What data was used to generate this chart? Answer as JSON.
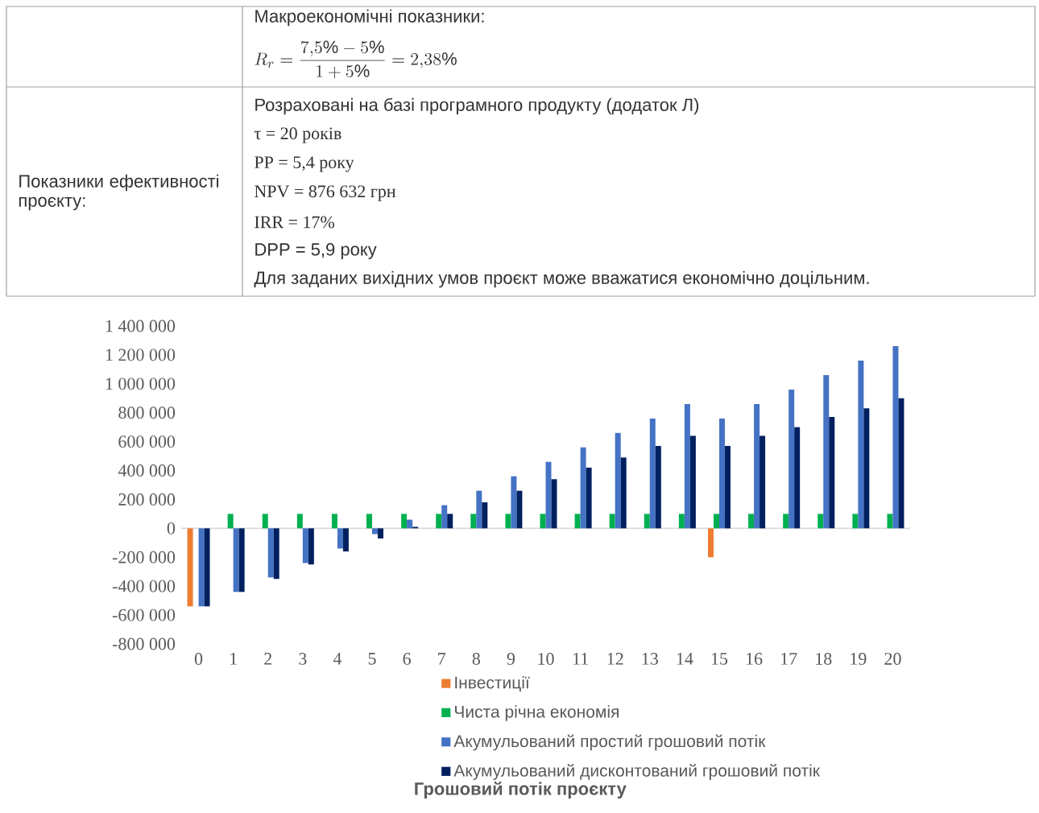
{
  "chart_data": {
    "type": "bar",
    "title": "Грошовий потік проєкту",
    "categories": [
      "0",
      "1",
      "2",
      "3",
      "4",
      "5",
      "6",
      "7",
      "8",
      "9",
      "10",
      "11",
      "12",
      "13",
      "14",
      "15",
      "16",
      "17",
      "18",
      "19",
      "20"
    ],
    "series": [
      {
        "name": "Інвестиції",
        "color": "#ed7d31",
        "values": [
          -540000,
          null,
          null,
          null,
          null,
          null,
          null,
          null,
          null,
          null,
          null,
          null,
          null,
          null,
          null,
          -200000,
          null,
          null,
          null,
          null,
          null
        ]
      },
      {
        "name": "Чиста річна економія",
        "color": "#00b050",
        "values": [
          null,
          100000,
          100000,
          100000,
          100000,
          100000,
          100000,
          100000,
          100000,
          100000,
          100000,
          100000,
          100000,
          100000,
          100000,
          100000,
          100000,
          100000,
          100000,
          100000,
          100000
        ]
      },
      {
        "name": "Акумульований простий грошовий потік",
        "color": "#4472c4",
        "values": [
          -540000,
          -440000,
          -340000,
          -240000,
          -140000,
          -40000,
          60000,
          160000,
          260000,
          360000,
          460000,
          560000,
          660000,
          760000,
          860000,
          760000,
          860000,
          960000,
          1060000,
          1160000,
          1260000
        ]
      },
      {
        "name": "Акумульований дисконтований  грошовий потік",
        "color": "#002060",
        "values": [
          -540000,
          -440000,
          -350000,
          -250000,
          -160000,
          -70000,
          10000,
          100000,
          180000,
          260000,
          340000,
          420000,
          490000,
          570000,
          640000,
          570000,
          640000,
          700000,
          770000,
          830000,
          900000
        ]
      }
    ],
    "ylim": [
      -800000,
      1400000
    ],
    "yticks": [
      {
        "value": -800000,
        "label": "-800 000"
      },
      {
        "value": -600000,
        "label": "-600 000"
      },
      {
        "value": -400000,
        "label": "-400 000"
      },
      {
        "value": -200000,
        "label": "-200 000"
      },
      {
        "value": 0,
        "label": "0"
      },
      {
        "value": 200000,
        "label": "200 000"
      },
      {
        "value": 400000,
        "label": "400 000"
      },
      {
        "value": 600000,
        "label": "600 000"
      },
      {
        "value": 800000,
        "label": "800 000"
      },
      {
        "value": 1000000,
        "label": "1 000 000"
      },
      {
        "value": 1200000,
        "label": "1 200 000"
      },
      {
        "value": 1400000,
        "label": "1 400 000"
      }
    ],
    "legend": "bottom",
    "annotations": [
      "Макроекономічні показники:",
      "R_r = \\frac{7{,}5\\% - 5\\%}{1 + 5\\%} = 2{,}38\\%",
      "Показники ефективності проєкту:",
      "Розраховані на базі програмного продукту (додаток Л)",
      "τ = 20 років",
      "PP = 5,4 року",
      "NPV = 876 632 грн",
      "IRR = 17%",
      "DPP = 5,9 року",
      "Для заданих вихідних умов проєкт може вважатися економічно доцільним."
    ]
  }
}
